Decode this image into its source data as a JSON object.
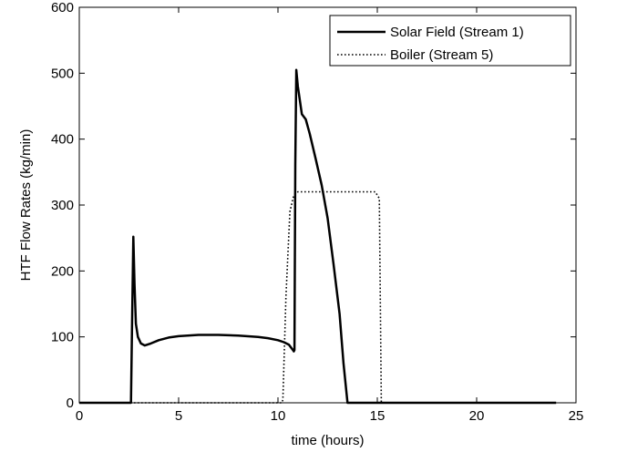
{
  "chart_data": {
    "type": "line",
    "xlabel": "time (hours)",
    "ylabel": "HTF Flow Rates (kg/min)",
    "xlim": [
      0,
      25
    ],
    "ylim": [
      0,
      600
    ],
    "xticks": [
      0,
      5,
      10,
      15,
      20,
      25
    ],
    "yticks": [
      0,
      100,
      200,
      300,
      400,
      500,
      600
    ],
    "grid": false,
    "legend_position": "top-right",
    "series": [
      {
        "name": "Solar Field (Stream 1)",
        "style": "solid",
        "color": "#000000",
        "x": [
          0,
          2.6,
          2.65,
          2.72,
          2.78,
          2.85,
          2.95,
          3.1,
          3.3,
          3.6,
          4.0,
          4.5,
          5.0,
          6.0,
          7.0,
          8.0,
          9.0,
          9.5,
          10.0,
          10.3,
          10.55,
          10.75,
          10.8,
          10.83,
          10.87,
          10.92,
          11.0,
          11.2,
          11.4,
          11.6,
          11.9,
          12.2,
          12.5,
          12.8,
          13.1,
          13.3,
          13.5,
          14.0,
          24.0
        ],
        "y": [
          0,
          0,
          110,
          252,
          180,
          120,
          100,
          90,
          87,
          90,
          95,
          99,
          101,
          103,
          103,
          102,
          100,
          98,
          95,
          92,
          88,
          80,
          78,
          80,
          360,
          505,
          480,
          438,
          430,
          408,
          370,
          330,
          280,
          210,
          135,
          60,
          0,
          0,
          0
        ]
      },
      {
        "name": "Boiler (Stream 5)",
        "style": "dotted",
        "color": "#000000",
        "x": [
          0,
          10.2,
          10.25,
          10.4,
          10.6,
          10.8,
          11.0,
          11.5,
          12.0,
          13.0,
          14.0,
          14.9,
          15.1,
          15.2,
          24.0
        ],
        "y": [
          0,
          0,
          5,
          160,
          290,
          315,
          320,
          320,
          320,
          320,
          320,
          320,
          310,
          0,
          0
        ]
      }
    ]
  }
}
